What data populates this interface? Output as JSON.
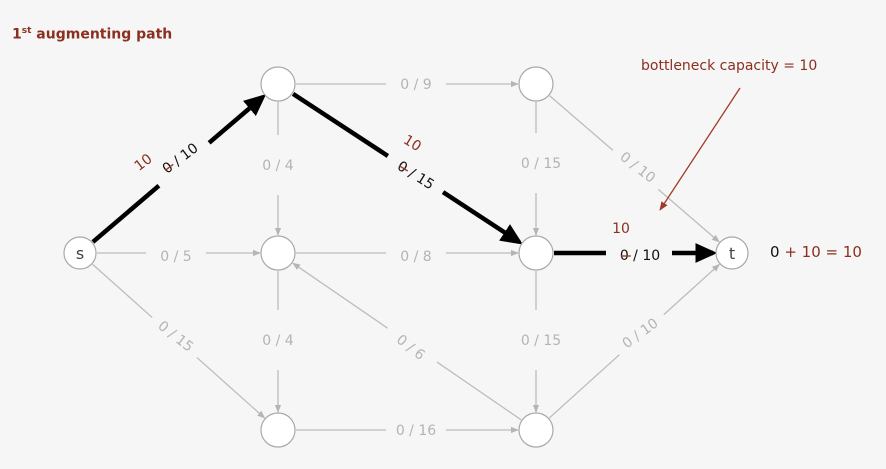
{
  "title": {
    "prefix": "1",
    "sup": "st",
    "text": " augmenting path"
  },
  "callout": "bottleneck capacity = 10",
  "flow_value": {
    "before": "0",
    "after": " + 10 = 10"
  },
  "colors": {
    "accent": "#8b2f1f",
    "gray_edge": "#bdbdbd",
    "gray_text": "#b4b4b4",
    "path": "#000000",
    "node_stroke": "#a8a8a8"
  },
  "nodes": [
    {
      "id": "s",
      "label": "s"
    },
    {
      "id": "t",
      "label": "t"
    },
    {
      "id": "a",
      "label": ""
    },
    {
      "id": "b",
      "label": ""
    },
    {
      "id": "c",
      "label": ""
    },
    {
      "id": "d",
      "label": ""
    },
    {
      "id": "e",
      "label": ""
    },
    {
      "id": "f",
      "label": ""
    }
  ],
  "edges": [
    {
      "from": "s",
      "to": "a",
      "label": "0 / 10",
      "path": true,
      "new_flow": "10"
    },
    {
      "from": "a",
      "to": "d",
      "label": "0 / 15",
      "path": true,
      "new_flow": "10"
    },
    {
      "from": "d",
      "to": "t",
      "label": "0 / 10",
      "path": true,
      "new_flow": "10"
    },
    {
      "from": "a",
      "to": "c",
      "label": "0 / 9",
      "path": false
    },
    {
      "from": "a",
      "to": "b",
      "label": "0 / 4",
      "path": false
    },
    {
      "from": "s",
      "to": "b",
      "label": "0 / 5",
      "path": false
    },
    {
      "from": "s",
      "to": "e",
      "label": "0 / 15",
      "path": false
    },
    {
      "from": "b",
      "to": "d",
      "label": "0 / 8",
      "path": false
    },
    {
      "from": "b",
      "to": "e",
      "label": "0 / 4",
      "path": false
    },
    {
      "from": "c",
      "to": "d",
      "label": "0 / 15",
      "path": false
    },
    {
      "from": "c",
      "to": "t",
      "label": "0 / 10",
      "path": false
    },
    {
      "from": "d",
      "to": "f",
      "label": "0 / 15",
      "path": false
    },
    {
      "from": "f",
      "to": "b",
      "label": "0 / 6",
      "path": false
    },
    {
      "from": "e",
      "to": "f",
      "label": "0 / 16",
      "path": false
    },
    {
      "from": "f",
      "to": "t",
      "label": "0 / 10",
      "path": false
    }
  ]
}
